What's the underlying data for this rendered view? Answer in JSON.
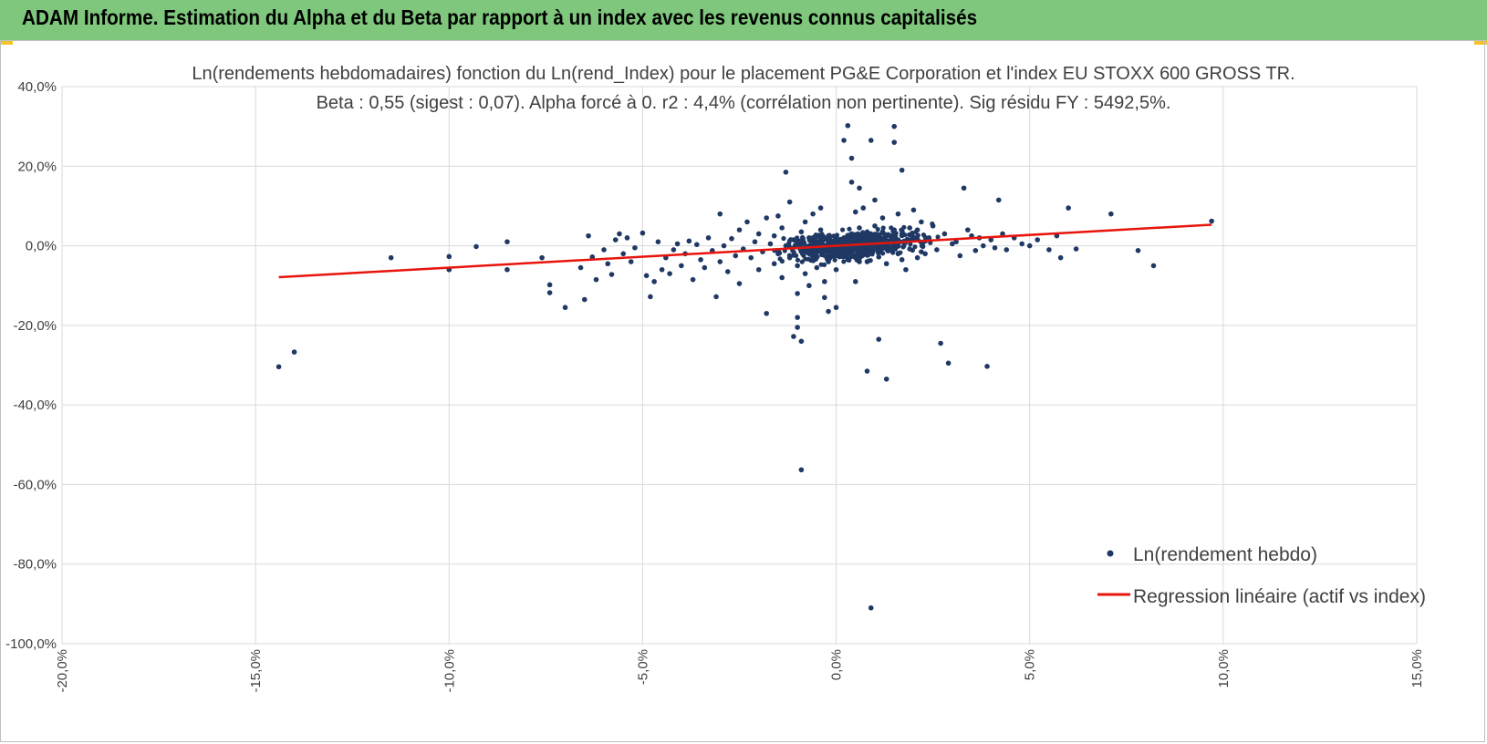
{
  "header": {
    "title": "ADAM Informe. Estimation du Alpha et du Beta par rapport à un index avec les revenus connus capitalisés"
  },
  "colors": {
    "header_bg": "#7ec77c",
    "points": "#1f3864",
    "regression": "#e8140c",
    "grid": "#d9d9d9"
  },
  "chart_data": {
    "type": "scatter",
    "title_lines": [
      "Ln(rendements hebdomadaires) fonction du Ln(rend_Index) pour le placement PG&E Corporation et l'index EU STOXX 600 GROSS TR.",
      "Beta : 0,55 (sigest : 0,07). Alpha forcé à 0. r2 : 4,4% (corrélation non pertinente). Sig résidu FY : 5492,5%."
    ],
    "xlim": [
      -0.2,
      0.15
    ],
    "ylim": [
      -1.0,
      0.4
    ],
    "x_ticks": [
      -0.2,
      -0.15,
      -0.1,
      -0.05,
      0.0,
      0.05,
      0.1,
      0.15
    ],
    "y_ticks": [
      0.4,
      0.2,
      0.0,
      -0.2,
      -0.4,
      -0.6,
      -0.8,
      -1.0
    ],
    "x_tick_labels": [
      "-20,0%",
      "-15,0%",
      "-10,0%",
      "-5,0%",
      "0,0%",
      "5,0%",
      "10,0%",
      "15,0%"
    ],
    "y_tick_labels": [
      "40,0%",
      "20,0%",
      "0,0%",
      "-20,0%",
      "-40,0%",
      "-60,0%",
      "-80,0%",
      "-100,0%"
    ],
    "grid": true,
    "legend_position": "bottom-right",
    "series": [
      {
        "name": "Ln(rendement hebdo)",
        "kind": "scatter",
        "points": [
          [
            -0.144,
            -0.304
          ],
          [
            -0.14,
            -0.267
          ],
          [
            -0.115,
            -0.03
          ],
          [
            -0.1,
            -0.06
          ],
          [
            -0.1,
            -0.027
          ],
          [
            -0.093,
            -0.002
          ],
          [
            -0.085,
            0.01
          ],
          [
            -0.085,
            -0.06
          ],
          [
            -0.076,
            -0.03
          ],
          [
            -0.074,
            -0.098
          ],
          [
            -0.074,
            -0.118
          ],
          [
            -0.07,
            -0.155
          ],
          [
            -0.066,
            -0.055
          ],
          [
            -0.065,
            -0.135
          ],
          [
            -0.064,
            0.025
          ],
          [
            -0.063,
            -0.028
          ],
          [
            -0.062,
            -0.085
          ],
          [
            -0.06,
            -0.01
          ],
          [
            -0.059,
            -0.045
          ],
          [
            -0.058,
            -0.072
          ],
          [
            -0.057,
            0.015
          ],
          [
            -0.056,
            0.03
          ],
          [
            -0.055,
            -0.02
          ],
          [
            -0.054,
            0.02
          ],
          [
            -0.053,
            -0.04
          ],
          [
            -0.052,
            -0.005
          ],
          [
            -0.05,
            0.032
          ],
          [
            -0.049,
            -0.075
          ],
          [
            -0.048,
            -0.128
          ],
          [
            -0.047,
            -0.09
          ],
          [
            -0.046,
            0.01
          ],
          [
            -0.045,
            -0.06
          ],
          [
            -0.044,
            -0.03
          ],
          [
            -0.043,
            -0.07
          ],
          [
            -0.042,
            -0.01
          ],
          [
            -0.041,
            0.005
          ],
          [
            -0.04,
            -0.05
          ],
          [
            -0.039,
            -0.02
          ],
          [
            -0.038,
            0.012
          ],
          [
            -0.037,
            -0.085
          ],
          [
            -0.036,
            0.003
          ],
          [
            -0.035,
            -0.035
          ],
          [
            -0.034,
            -0.055
          ],
          [
            -0.033,
            0.02
          ],
          [
            -0.032,
            -0.012
          ],
          [
            -0.031,
            -0.128
          ],
          [
            -0.03,
            0.08
          ],
          [
            -0.03,
            -0.04
          ],
          [
            -0.029,
            0.0
          ],
          [
            -0.028,
            -0.065
          ],
          [
            -0.027,
            0.018
          ],
          [
            -0.026,
            -0.025
          ],
          [
            -0.025,
            0.04
          ],
          [
            -0.025,
            -0.095
          ],
          [
            -0.024,
            -0.008
          ],
          [
            -0.023,
            0.06
          ],
          [
            -0.022,
            -0.03
          ],
          [
            -0.021,
            0.01
          ],
          [
            -0.02,
            -0.06
          ],
          [
            -0.02,
            0.03
          ],
          [
            -0.019,
            -0.015
          ],
          [
            -0.018,
            0.07
          ],
          [
            -0.018,
            -0.17
          ],
          [
            -0.017,
            0.005
          ],
          [
            -0.016,
            -0.045
          ],
          [
            -0.016,
            0.025
          ],
          [
            -0.015,
            -0.02
          ],
          [
            -0.014,
            0.045
          ],
          [
            -0.014,
            -0.08
          ],
          [
            -0.013,
            0.0
          ],
          [
            -0.012,
            -0.03
          ],
          [
            -0.012,
            0.11
          ],
          [
            -0.011,
            0.015
          ],
          [
            -0.01,
            -0.05
          ],
          [
            -0.01,
            -0.18
          ],
          [
            -0.009,
            0.035
          ],
          [
            -0.009,
            -0.01
          ],
          [
            -0.008,
            0.06
          ],
          [
            -0.008,
            -0.07
          ],
          [
            -0.007,
            0.0
          ],
          [
            -0.007,
            0.02
          ],
          [
            -0.006,
            -0.03
          ],
          [
            -0.006,
            0.08
          ],
          [
            -0.005,
            -0.055
          ],
          [
            -0.005,
            0.01
          ],
          [
            -0.004,
            -0.015
          ],
          [
            -0.004,
            0.04
          ],
          [
            -0.003,
            -0.09
          ],
          [
            -0.003,
            0.0
          ],
          [
            -0.002,
            0.025
          ],
          [
            -0.002,
            -0.04
          ],
          [
            -0.001,
            0.005
          ],
          [
            -0.001,
            -0.02
          ],
          [
            0.0,
            0.012
          ],
          [
            0.0,
            -0.06
          ],
          [
            -0.013,
            0.185
          ],
          [
            -0.011,
            -0.228
          ],
          [
            -0.01,
            -0.205
          ],
          [
            -0.009,
            -0.24
          ],
          [
            -0.009,
            -0.563
          ],
          [
            -0.015,
            0.075
          ],
          [
            -0.01,
            -0.12
          ],
          [
            -0.007,
            -0.1
          ],
          [
            -0.004,
            0.095
          ],
          [
            -0.003,
            -0.13
          ],
          [
            -0.002,
            -0.165
          ],
          [
            0.0,
            -0.155
          ],
          [
            0.002,
            0.265
          ],
          [
            0.003,
            0.302
          ],
          [
            0.004,
            0.22
          ],
          [
            0.004,
            0.16
          ],
          [
            0.005,
            0.085
          ],
          [
            0.005,
            -0.09
          ],
          [
            0.006,
            0.145
          ],
          [
            0.006,
            -0.04
          ],
          [
            0.007,
            0.095
          ],
          [
            0.008,
            0.035
          ],
          [
            0.008,
            -0.315
          ],
          [
            0.009,
            0.265
          ],
          [
            0.009,
            -0.91
          ],
          [
            0.01,
            0.115
          ],
          [
            0.011,
            -0.235
          ],
          [
            0.012,
            0.07
          ],
          [
            0.013,
            -0.335
          ],
          [
            0.015,
            0.26
          ],
          [
            0.015,
            0.3
          ],
          [
            0.016,
            0.08
          ],
          [
            0.017,
            0.19
          ],
          [
            0.018,
            -0.06
          ],
          [
            0.019,
            0.045
          ],
          [
            0.02,
            0.09
          ],
          [
            0.021,
            -0.03
          ],
          [
            0.022,
            0.06
          ],
          [
            0.023,
            -0.02
          ],
          [
            0.024,
            0.02
          ],
          [
            0.025,
            0.05
          ],
          [
            0.026,
            -0.01
          ],
          [
            0.027,
            -0.245
          ],
          [
            0.028,
            0.03
          ],
          [
            0.029,
            -0.295
          ],
          [
            0.03,
            0.005
          ],
          [
            0.031,
            0.01
          ],
          [
            0.032,
            -0.025
          ],
          [
            0.033,
            0.145
          ],
          [
            0.034,
            0.04
          ],
          [
            0.035,
            0.025
          ],
          [
            0.036,
            -0.012
          ],
          [
            0.037,
            0.02
          ],
          [
            0.038,
            0.0
          ],
          [
            0.039,
            -0.303
          ],
          [
            0.04,
            0.015
          ],
          [
            0.041,
            -0.005
          ],
          [
            0.042,
            0.115
          ],
          [
            0.043,
            0.03
          ],
          [
            0.044,
            -0.01
          ],
          [
            0.046,
            0.02
          ],
          [
            0.048,
            0.005
          ],
          [
            0.05,
            0.0
          ],
          [
            0.052,
            0.015
          ],
          [
            0.055,
            -0.01
          ],
          [
            0.057,
            0.025
          ],
          [
            0.058,
            -0.03
          ],
          [
            0.06,
            0.095
          ],
          [
            0.062,
            -0.008
          ],
          [
            0.071,
            0.08
          ],
          [
            0.078,
            -0.012
          ],
          [
            0.082,
            -0.05
          ],
          [
            0.097,
            0.062
          ],
          [
            0.001,
            0.005
          ],
          [
            0.001,
            -0.015
          ],
          [
            0.002,
            0.02
          ],
          [
            0.002,
            -0.008
          ],
          [
            0.003,
            0.01
          ],
          [
            0.003,
            -0.025
          ],
          [
            0.004,
            0.03
          ],
          [
            0.004,
            -0.005
          ],
          [
            0.005,
            0.015
          ],
          [
            0.005,
            -0.03
          ],
          [
            0.006,
            0.0
          ],
          [
            0.006,
            0.045
          ],
          [
            0.007,
            -0.012
          ],
          [
            0.007,
            0.022
          ],
          [
            0.008,
            -0.04
          ],
          [
            0.008,
            0.008
          ],
          [
            0.009,
            0.03
          ],
          [
            0.009,
            -0.018
          ],
          [
            0.01,
            0.002
          ],
          [
            0.01,
            0.05
          ],
          [
            0.011,
            -0.028
          ],
          [
            0.011,
            0.018
          ],
          [
            0.012,
            -0.006
          ],
          [
            0.012,
            0.035
          ],
          [
            0.013,
            0.012
          ],
          [
            0.013,
            -0.045
          ],
          [
            0.014,
            0.025
          ],
          [
            0.014,
            -0.01
          ],
          [
            0.015,
            0.04
          ],
          [
            0.015,
            0.0
          ],
          [
            0.016,
            -0.02
          ],
          [
            0.016,
            0.015
          ],
          [
            0.017,
            0.03
          ],
          [
            0.017,
            -0.035
          ],
          [
            0.018,
            0.01
          ],
          [
            0.019,
            -0.008
          ],
          [
            0.02,
            0.022
          ],
          [
            0.021,
            0.04
          ],
          [
            0.022,
            -0.015
          ],
          [
            0.023,
            0.012
          ]
        ]
      },
      {
        "name": "Regression linéaire (actif vs index)",
        "kind": "line",
        "points": [
          [
            -0.144,
            -0.079
          ],
          [
            0.097,
            0.053
          ]
        ]
      }
    ]
  }
}
